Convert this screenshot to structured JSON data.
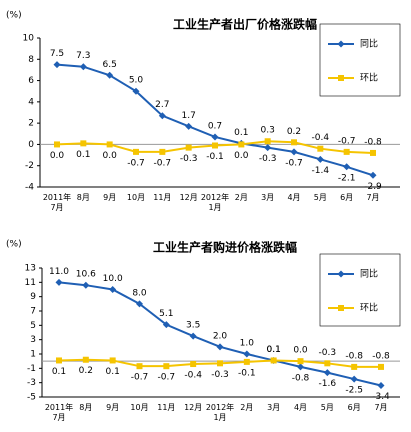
{
  "chart_data": [
    {
      "type": "line",
      "title": "工业生产者出厂价格涨跌幅",
      "y_label": "(%)",
      "categories": [
        "2011年\n7月",
        "8月",
        "9月",
        "10月",
        "11月",
        "12月",
        "2012年\n1月",
        "2月",
        "3月",
        "4月",
        "5月",
        "6月",
        "7月"
      ],
      "series": [
        {
          "name": "同比",
          "color": "#1f5fb4",
          "marker": "diamond",
          "values": [
            7.5,
            7.3,
            6.5,
            5.0,
            2.7,
            1.7,
            0.7,
            0.1,
            -0.3,
            -0.7,
            -1.4,
            -2.1,
            -2.9
          ],
          "value_labels": [
            "7.5",
            "7.3",
            "6.5",
            "5.0",
            "2.7",
            "1.7",
            "0.7",
            "0.1",
            "-0.3",
            "-0.7",
            "-1.4",
            "-2.1",
            "-2.9"
          ]
        },
        {
          "name": "环比",
          "color": "#f5c400",
          "marker": "square",
          "values": [
            0.0,
            0.1,
            0.0,
            -0.7,
            -0.7,
            -0.3,
            -0.1,
            0.0,
            0.3,
            0.2,
            -0.4,
            -0.7,
            -0.8
          ],
          "value_labels": [
            "0.0",
            "0.1",
            "0.0",
            "-0.7",
            "-0.7",
            "-0.3",
            "-0.1",
            "0.0",
            "0.3",
            "0.2",
            "-0.4",
            "-0.7",
            "-0.8"
          ]
        }
      ],
      "ylim": [
        -4,
        10
      ],
      "yticks": [
        -4,
        -2,
        0,
        2,
        4,
        6,
        8,
        10
      ],
      "legend": "upper right",
      "grid": false
    },
    {
      "type": "line",
      "title": "工业生产者购进价格涨跌幅",
      "y_label": "(%)",
      "categories": [
        "2011年\n7月",
        "8月",
        "9月",
        "10月",
        "11月",
        "12月",
        "2012年\n1月",
        "2月",
        "3月",
        "4月",
        "5月",
        "6月",
        "7月"
      ],
      "series": [
        {
          "name": "同比",
          "color": "#1f5fb4",
          "marker": "diamond",
          "values": [
            11.0,
            10.6,
            10.0,
            8.0,
            5.1,
            3.5,
            2.0,
            1.0,
            0.1,
            -0.8,
            -1.6,
            -2.5,
            -3.4
          ],
          "value_labels": [
            "11.0",
            "10.6",
            "10.0",
            "8.0",
            "5.1",
            "3.5",
            "2.0",
            "1.0",
            "0.1",
            "-0.8",
            "-1.6",
            "-2.5",
            "-3.4"
          ]
        },
        {
          "name": "环比",
          "color": "#f5c400",
          "marker": "square",
          "values": [
            0.1,
            0.2,
            0.1,
            -0.7,
            -0.7,
            -0.4,
            -0.3,
            -0.1,
            0.1,
            0.0,
            -0.3,
            -0.8,
            -0.8
          ],
          "value_labels": [
            "0.1",
            "0.2",
            "0.1",
            "-0.7",
            "-0.7",
            "-0.4",
            "-0.3",
            "-0.1",
            "0.1",
            "0.0",
            "-0.3",
            "-0.8",
            "-0.8"
          ]
        }
      ],
      "ylim": [
        -5,
        13
      ],
      "yticks": [
        -5,
        -3,
        -1,
        1,
        3,
        5,
        7,
        9,
        11,
        13
      ],
      "legend": "upper right",
      "grid": false
    }
  ]
}
